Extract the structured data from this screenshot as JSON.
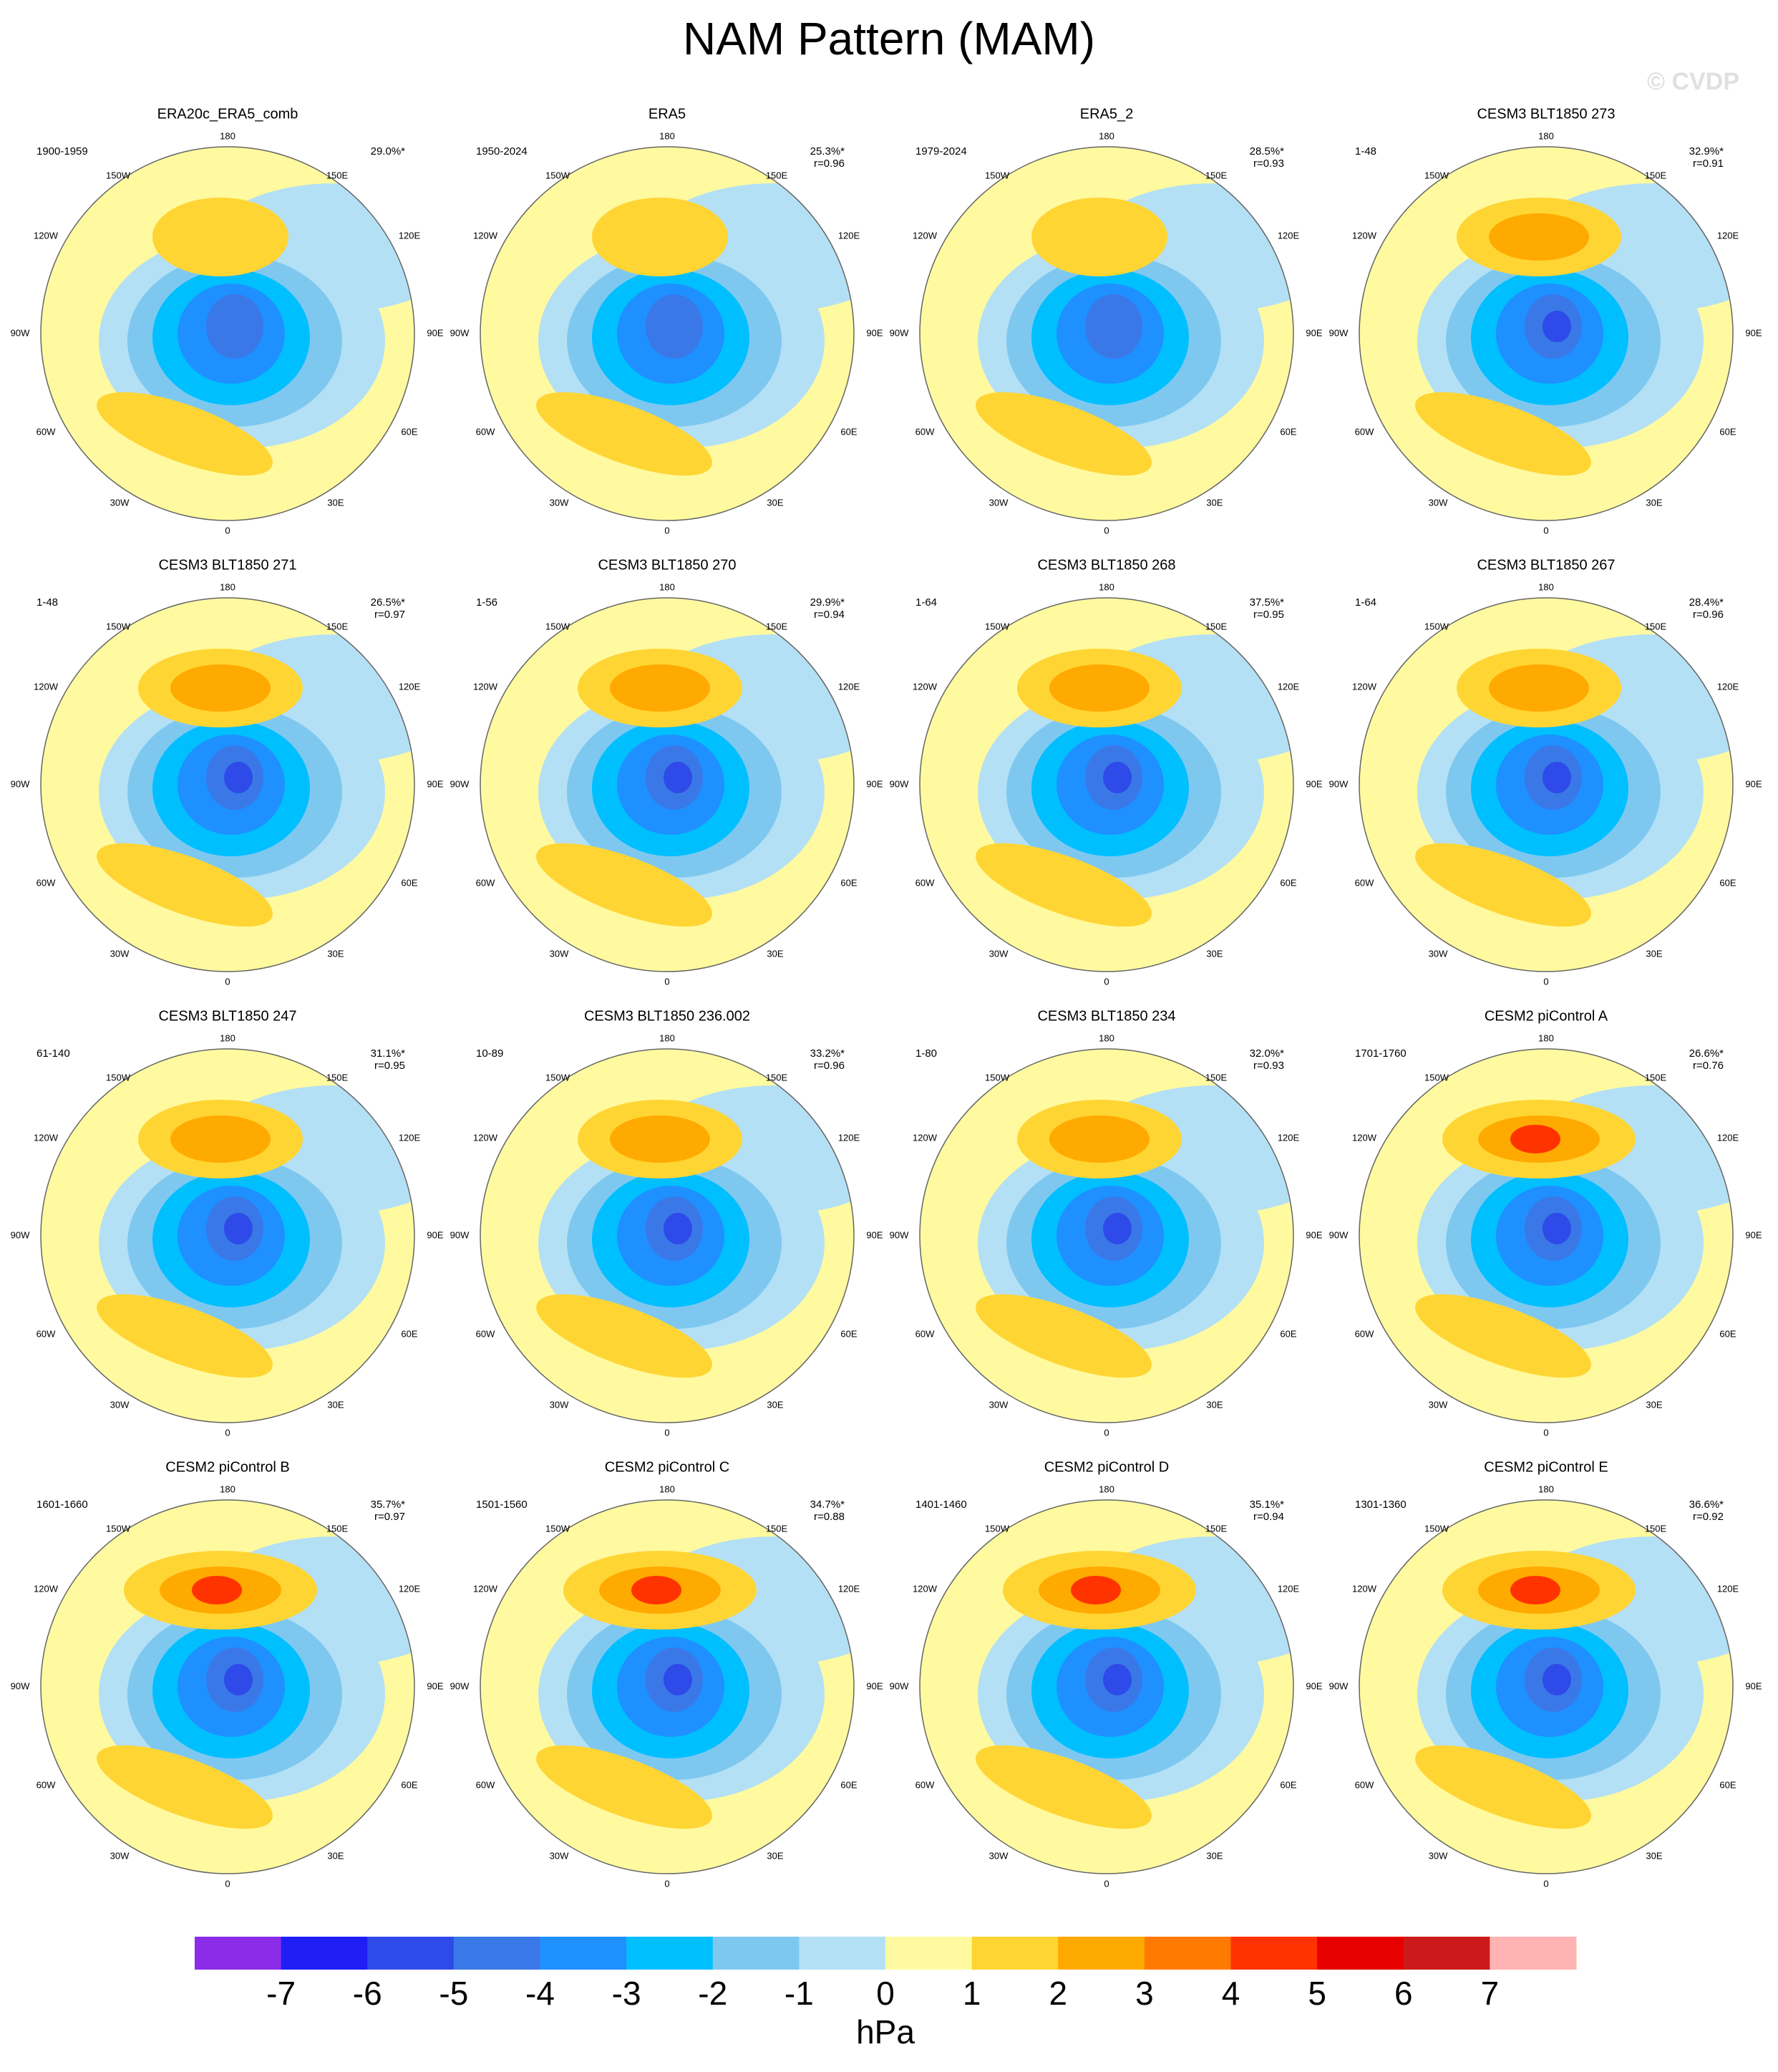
{
  "title": "NAM Pattern (MAM)",
  "watermark": "© CVDP",
  "longitude_labels": {
    "n": "180",
    "e150": "150E",
    "e120": "120E",
    "e90": "90E",
    "e60": "60E",
    "e30": "30E",
    "s": "0",
    "w30": "30W",
    "w60": "60W",
    "w90": "90W",
    "w120": "120W",
    "w150": "150W"
  },
  "panels": [
    {
      "title": "ERA20c_ERA5_comb",
      "period": "1900-1959",
      "variance": "29.0%*"
    },
    {
      "title": "ERA5",
      "period": "1950-2024",
      "variance": "25.3%*",
      "r": "r=0.96"
    },
    {
      "title": "ERA5_2",
      "period": "1979-2024",
      "variance": "28.5%*",
      "r": "r=0.93"
    },
    {
      "title": "CESM3 BLT1850 273",
      "period": "1-48",
      "variance": "32.9%*",
      "r": "r=0.91"
    },
    {
      "title": "CESM3 BLT1850 271",
      "period": "1-48",
      "variance": "26.5%*",
      "r": "r=0.97"
    },
    {
      "title": "CESM3 BLT1850 270",
      "period": "1-56",
      "variance": "29.9%*",
      "r": "r=0.94"
    },
    {
      "title": "CESM3 BLT1850 268",
      "period": "1-64",
      "variance": "37.5%*",
      "r": "r=0.95"
    },
    {
      "title": "CESM3 BLT1850 267",
      "period": "1-64",
      "variance": "28.4%*",
      "r": "r=0.96"
    },
    {
      "title": "CESM3 BLT1850 247",
      "period": "61-140",
      "variance": "31.1%*",
      "r": "r=0.95"
    },
    {
      "title": "CESM3 BLT1850 236.002",
      "period": "10-89",
      "variance": "33.2%*",
      "r": "r=0.96"
    },
    {
      "title": "CESM3 BLT1850 234",
      "period": "1-80",
      "variance": "32.0%*",
      "r": "r=0.93"
    },
    {
      "title": "CESM2 piControl A",
      "period": "1701-1760",
      "variance": "26.6%*",
      "r": "r=0.76"
    },
    {
      "title": "CESM2 piControl B",
      "period": "1601-1660",
      "variance": "35.7%*",
      "r": "r=0.97"
    },
    {
      "title": "CESM2 piControl C",
      "period": "1501-1560",
      "variance": "34.7%*",
      "r": "r=0.88"
    },
    {
      "title": "CESM2 piControl D",
      "period": "1401-1460",
      "variance": "35.1%*",
      "r": "r=0.94"
    },
    {
      "title": "CESM2 piControl E",
      "period": "1301-1360",
      "variance": "36.6%*",
      "r": "r=0.92"
    }
  ],
  "colorbar": {
    "colors": [
      "#8b2ce8",
      "#1e1ef5",
      "#2e4ae8",
      "#3a78e8",
      "#1e90ff",
      "#00bfff",
      "#7ec8f0",
      "#b4e0f5",
      "#fffaa0",
      "#ffd534",
      "#ffaa00",
      "#ff7a00",
      "#ff3300",
      "#e60000",
      "#cc1a1a",
      "#ffb3b3"
    ],
    "ticks": [
      -7,
      -6,
      -5,
      -4,
      -3,
      -2,
      -1,
      0,
      1,
      2,
      3,
      4,
      5,
      6,
      7
    ],
    "unit": "hPa"
  }
}
